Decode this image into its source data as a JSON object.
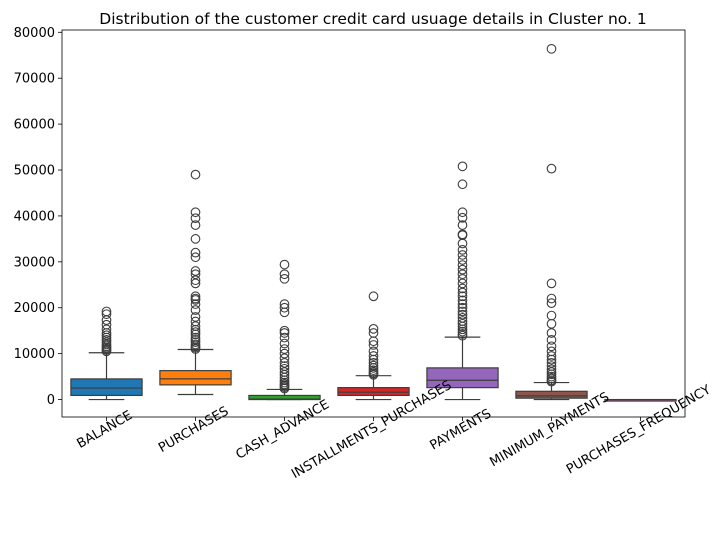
{
  "chart_data": {
    "type": "box",
    "title": "Distribution of the customer credit card usuage details in Cluster no. 1",
    "xlabel": "",
    "ylabel": "",
    "ylim": [
      -3800,
      80500
    ],
    "yticks": [
      0,
      10000,
      20000,
      30000,
      40000,
      50000,
      60000,
      70000,
      80000
    ],
    "ytick_labels": [
      "0",
      "10000",
      "20000",
      "30000",
      "40000",
      "50000",
      "60000",
      "70000",
      "80000"
    ],
    "grid": false,
    "legend": "none",
    "categories": [
      "BALANCE",
      "PURCHASES",
      "CASH_ADVANCE",
      "INSTALLMENTS_PURCHASES",
      "PAYMENTS",
      "MINIMUM_PAYMENTS",
      "PURCHASES_FREQUENCY"
    ],
    "colors": [
      "#1f77b4",
      "#ff7f0e",
      "#2ca02c",
      "#d62728",
      "#9467bd",
      "#8c564b",
      "#e377c2"
    ],
    "boxes": [
      {
        "whisker_low": 0,
        "q1": 900,
        "median": 2500,
        "q3": 4500,
        "whisker_high": 10200,
        "outliers": [
          10500,
          10800,
          11000,
          11300,
          11600,
          12000,
          12500,
          13000,
          13500,
          14000,
          14500,
          15300,
          16300,
          17300,
          18600,
          19200
        ]
      },
      {
        "whisker_low": 1100,
        "q1": 3200,
        "median": 4500,
        "q3": 6300,
        "whisker_high": 10900,
        "outliers": [
          11000,
          11300,
          11600,
          12000,
          12500,
          13000,
          13500,
          14200,
          14700,
          15200,
          16000,
          17000,
          18000,
          19500,
          20800,
          21700,
          22000,
          22500,
          25300,
          26000,
          27300,
          28000,
          31000,
          32000,
          35000,
          38000,
          39500,
          40800,
          49000
        ]
      },
      {
        "whisker_low": 0,
        "q1": 0,
        "median": 100,
        "q3": 900,
        "whisker_high": 2200,
        "outliers": [
          2400,
          2700,
          3000,
          3300,
          3700,
          4200,
          4800,
          5400,
          6000,
          6700,
          7300,
          8000,
          9000,
          10000,
          11000,
          12200,
          13500,
          14500,
          15000,
          19000,
          20000,
          20800,
          26300,
          27300,
          29400
        ]
      },
      {
        "whisker_low": 0,
        "q1": 900,
        "median": 1600,
        "q3": 2600,
        "whisker_high": 5200,
        "outliers": [
          5400,
          5700,
          6000,
          6400,
          6900,
          7400,
          8000,
          8700,
          9500,
          10500,
          11900,
          12700,
          14500,
          15400,
          22500
        ]
      },
      {
        "whisker_low": 0,
        "q1": 2600,
        "median": 4200,
        "q3": 6900,
        "whisker_high": 13600,
        "outliers": [
          13900,
          14300,
          14800,
          15300,
          15900,
          16500,
          17100,
          17800,
          18500,
          19200,
          20000,
          20800,
          21600,
          22500,
          23300,
          24200,
          25300,
          26300,
          27300,
          28300,
          29300,
          30400,
          31500,
          32600,
          34000,
          35800,
          36000,
          38000,
          39600,
          40800,
          46900,
          50800
        ]
      },
      {
        "whisker_low": 0,
        "q1": 300,
        "median": 800,
        "q3": 1800,
        "whisker_high": 3700,
        "outliers": [
          3900,
          4200,
          4600,
          5000,
          5500,
          6000,
          6600,
          7300,
          8000,
          8700,
          9500,
          10500,
          11600,
          13000,
          14500,
          16500,
          18300,
          21000,
          22000,
          25300,
          50300,
          76400
        ]
      },
      {
        "whisker_low": 0,
        "q1": 0.3,
        "median": 0.7,
        "q3": 1,
        "whisker_high": 1,
        "outliers": []
      }
    ]
  }
}
